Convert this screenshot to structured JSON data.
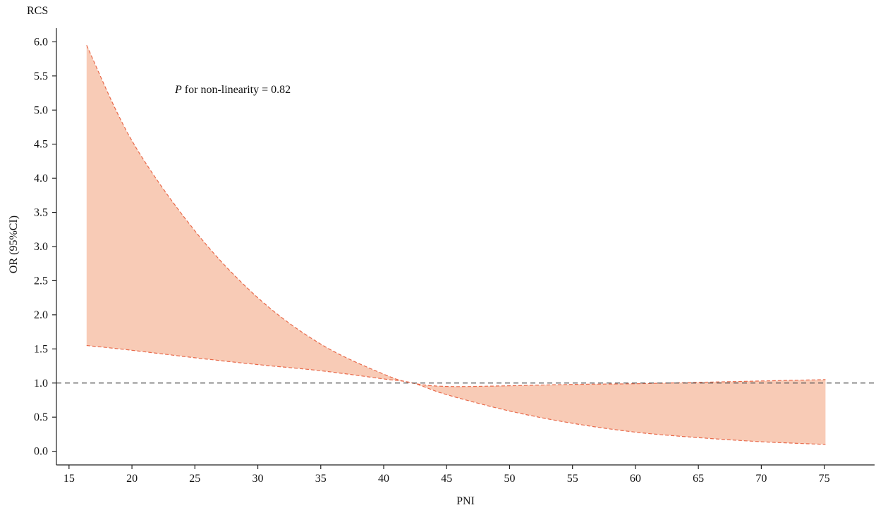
{
  "chart_data": {
    "type": "area",
    "title": "RCS",
    "xlabel": "PNI",
    "ylabel": "OR (95%CI)",
    "xlim": [
      14,
      79
    ],
    "ylim": [
      -0.2,
      6.2
    ],
    "x_ticks": [
      15,
      20,
      25,
      30,
      35,
      40,
      45,
      50,
      55,
      60,
      65,
      70,
      75
    ],
    "y_ticks": [
      0.0,
      0.5,
      1.0,
      1.5,
      2.0,
      2.5,
      3.0,
      3.5,
      4.0,
      4.5,
      5.0,
      5.5,
      6.0
    ],
    "reference_line": {
      "y": 1.0,
      "style": "dashed"
    },
    "annotation": {
      "italic_part": "P",
      "text": " for non-linearity = 0.82"
    },
    "band_color": "#f8cbb6",
    "band_edge_color": "#e8694a",
    "x": [
      16.4,
      20,
      25,
      30,
      35,
      40,
      42.3,
      45,
      50,
      55,
      60,
      65,
      70,
      75.1
    ],
    "upper": [
      5.95,
      4.55,
      3.23,
      2.25,
      1.57,
      1.13,
      1.0,
      0.95,
      0.96,
      0.98,
      0.99,
      1.01,
      1.03,
      1.05
    ],
    "lower": [
      1.55,
      1.48,
      1.37,
      1.27,
      1.18,
      1.06,
      1.0,
      0.83,
      0.59,
      0.41,
      0.28,
      0.2,
      0.14,
      0.1
    ]
  }
}
